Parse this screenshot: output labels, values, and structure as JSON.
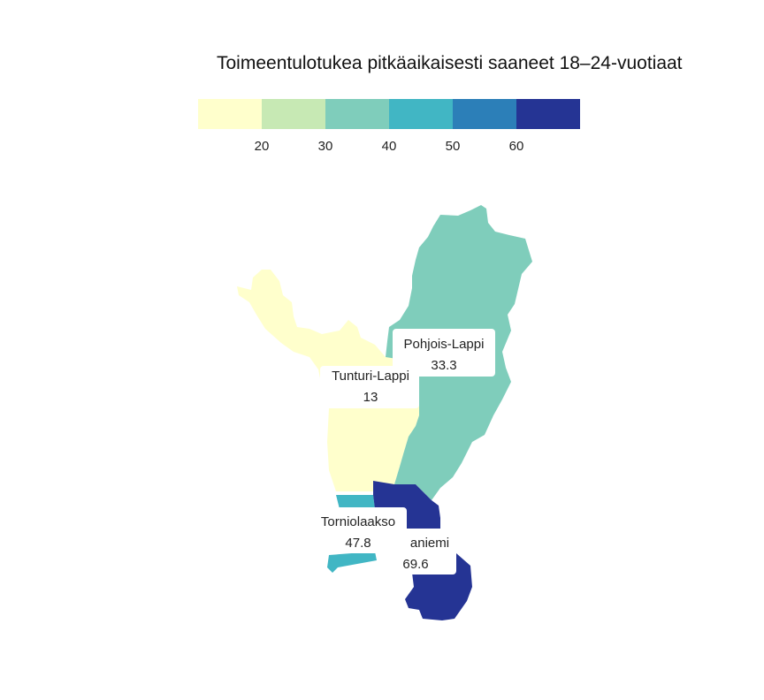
{
  "title": "Toimeentulotukea pitkäaikaisesti saaneet 18–24-vuotiaat",
  "legend": {
    "bins": [
      "#ffffcc",
      "#c7e9b4",
      "#7fcdbb",
      "#41b6c4",
      "#2c7fb8",
      "#253494"
    ],
    "ticks": [
      "20",
      "30",
      "40",
      "50",
      "60"
    ],
    "tick_values": [
      20,
      30,
      40,
      50,
      60
    ]
  },
  "regions": [
    {
      "name": "Tunturi-Lappi",
      "value": 13,
      "value_label": "13",
      "color": "#ffffcc"
    },
    {
      "name": "Pohjois-Lappi",
      "value": 33.3,
      "value_label": "33.3",
      "color": "#7fcdbb"
    },
    {
      "name": "Torniolaakso",
      "value": 47.8,
      "value_label": "47.8",
      "color": "#41b6c4"
    },
    {
      "name": "aniemi",
      "value": 69.6,
      "value_label": "69.6",
      "color": "#253494"
    }
  ],
  "chart_data": {
    "type": "choropleth",
    "title": "Toimeentulotukea pitkäaikaisesti saaneet 18–24-vuotiaat",
    "categories": [
      "Tunturi-Lappi",
      "Pohjois-Lappi",
      "Torniolaakso",
      "aniemi"
    ],
    "values": [
      13,
      33.3,
      47.8,
      69.6
    ],
    "legend_breaks": [
      20,
      30,
      40,
      50,
      60
    ],
    "legend_placement": "top"
  }
}
